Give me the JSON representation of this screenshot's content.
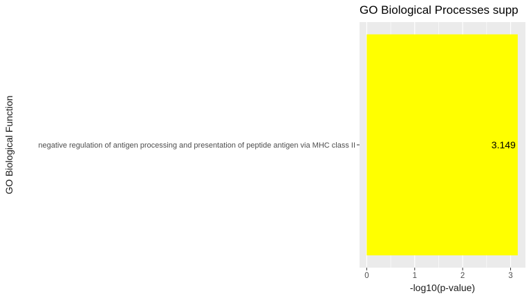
{
  "chart_data": {
    "type": "bar",
    "orientation": "horizontal",
    "title": "GO Biological Processes supp",
    "xlabel": "-log10(p-value)",
    "ylabel": "GO Biological Function",
    "categories": [
      "negative regulation of antigen processing and presentation of peptide antigen via MHC class II"
    ],
    "values": [
      3.149
    ],
    "data_labels": [
      "3.149"
    ],
    "xlim": [
      -0.15,
      3.31
    ],
    "xticks": [
      0,
      1,
      2,
      3
    ],
    "xtick_labels": [
      "0",
      "1",
      "2",
      "3"
    ],
    "grid": true,
    "panel_background": "#ebebeb",
    "bar_color": "#ffff00"
  }
}
